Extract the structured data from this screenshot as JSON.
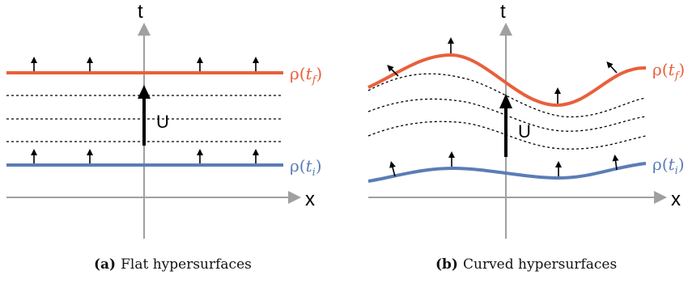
{
  "colors": {
    "final_surface": "#e8603c",
    "initial_surface": "#5b7db5",
    "axis": "#a0a0a0",
    "ink": "#000000"
  },
  "panel_a": {
    "caption_tag": "(a)",
    "caption_text": "Flat hypersurfaces",
    "axis_t": "t",
    "axis_x": "x",
    "operator": "U",
    "rho_final": {
      "head": "ρ(",
      "var": "t",
      "sub": "f",
      "tail": ")"
    },
    "rho_initial": {
      "head": "ρ(",
      "var": "t",
      "sub": "i",
      "tail": ")"
    }
  },
  "panel_b": {
    "caption_tag": "(b)",
    "caption_text": "Curved hypersurfaces",
    "axis_t": "t",
    "axis_x": "x",
    "operator": "U",
    "rho_final": {
      "head": "ρ(",
      "var": "t",
      "sub": "f",
      "tail": ")"
    },
    "rho_initial": {
      "head": "ρ(",
      "var": "t",
      "sub": "i",
      "tail": ")"
    }
  }
}
